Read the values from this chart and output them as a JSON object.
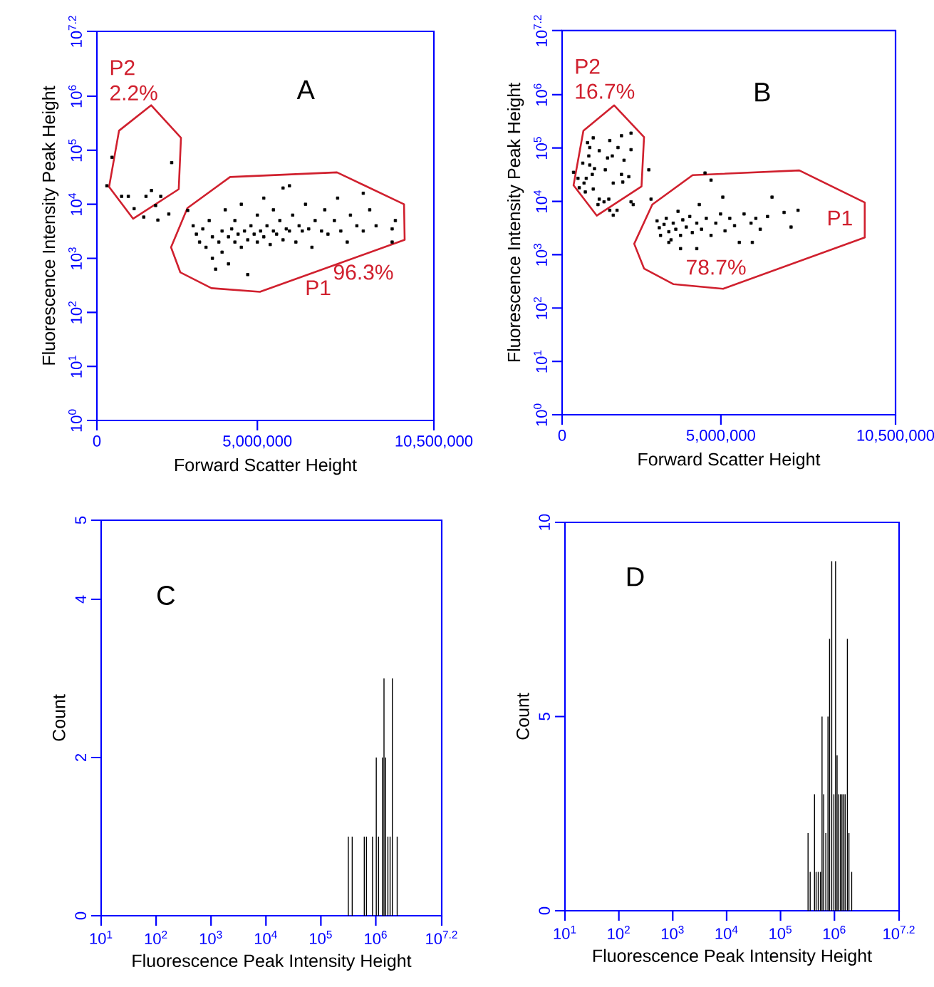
{
  "chart_data": [
    {
      "type": "scatter",
      "xlabel": "Forward Scatter Height",
      "ylabel": "Fluorescence Intensity Peak Height",
      "log": "y",
      "marker": "square",
      "xlim": [
        0,
        10500000
      ],
      "xticks": [
        0,
        {
          "value": 5000000,
          "label": "5,000,000"
        },
        {
          "value": 10500000,
          "label": "10,500,000"
        }
      ],
      "ylim": [
        1,
        15848932
      ],
      "yticks": [
        {
          "value": 1,
          "label": "10$^{0}$"
        },
        {
          "value": 10,
          "label": "10$^{1}$"
        },
        {
          "value": 100,
          "label": "10$^{2}$"
        },
        {
          "value": 1000,
          "label": "10$^{3}$"
        },
        {
          "value": 10000,
          "label": "10$^{4}$"
        },
        {
          "value": 100000,
          "label": "10$^{5}$"
        },
        {
          "value": 1000000,
          "label": "10$^{6}$"
        },
        {
          "value": 15848932,
          "label": "10$^{7.2}$"
        }
      ],
      "series": [
        {
          "type": "scatter",
          "color": "#000000",
          "x": [
            3000000,
            3100000,
            3200000,
            3300000,
            3400000,
            3500000,
            3600000,
            3600000,
            3700000,
            3800000,
            3900000,
            3900000,
            4000000,
            4100000,
            4100000,
            4200000,
            4300000,
            4300000,
            4400000,
            4500000,
            4500000,
            4600000,
            4700000,
            4700000,
            4800000,
            4900000,
            5000000,
            5000000,
            5100000,
            5200000,
            5200000,
            5300000,
            5400000,
            5500000,
            5500000,
            5600000,
            5700000,
            5800000,
            5800000,
            5900000,
            6000000,
            6000000,
            6100000,
            6200000,
            6300000,
            6400000,
            6500000,
            6600000,
            6700000,
            6800000,
            7000000,
            7100000,
            7200000,
            7400000,
            7500000,
            7600000,
            7800000,
            7900000,
            8100000,
            8300000,
            8300000,
            8500000,
            8700000,
            9200000,
            9300000,
            9200000,
            470000,
            2330000,
            1700000,
            770000,
            980000,
            1530000,
            1990000,
            1160000,
            1830000,
            1460000,
            1900000,
            2240000,
            2830000,
            310000
          ],
          "values": [
            4000,
            2800,
            2000,
            3500,
            1600,
            5000,
            1000,
            2500,
            630,
            2000,
            3200,
            1300,
            7900,
            2500,
            790,
            3500,
            2000,
            5000,
            2800,
            1600,
            10000,
            3200,
            2200,
            500,
            4000,
            2800,
            2000,
            6300,
            3200,
            2500,
            13000,
            4000,
            1800,
            3200,
            7900,
            2800,
            5000,
            2200,
            20000,
            3500,
            3200,
            22000,
            6300,
            2000,
            4000,
            3200,
            10000,
            3500,
            1600,
            5000,
            3200,
            7900,
            2800,
            5000,
            13000,
            3200,
            2000,
            6300,
            4000,
            16000,
            3200,
            7900,
            4000,
            3500,
            5000,
            2000,
            74000,
            59000,
            18000,
            14000,
            14000,
            14000,
            14000,
            8300,
            9500,
            5800,
            5100,
            6600,
            7700,
            22000
          ]
        }
      ],
      "annotations": [
        "A",
        "P2",
        "2.2%",
        "P1",
        "96.3%"
      ]
    },
    {
      "type": "scatter",
      "xlabel": "Forward Scatter Height",
      "ylabel": "Fluorescence Intensity Peak Height",
      "log": "y",
      "marker": "square",
      "xlim": [
        0,
        10500000
      ],
      "xticks": [
        0,
        {
          "value": 5000000,
          "label": "5,000,000"
        },
        {
          "value": 10500000,
          "label": "10,500,000"
        }
      ],
      "ylim": [
        1,
        15848932
      ],
      "yticks": [
        {
          "value": 1,
          "label": "10$^{0}$"
        },
        {
          "value": 10,
          "label": "10$^{1}$"
        },
        {
          "value": 100,
          "label": "10$^{2}$"
        },
        {
          "value": 1000,
          "label": "10$^{3}$"
        },
        {
          "value": 10000,
          "label": "10$^{4}$"
        },
        {
          "value": 100000,
          "label": "10$^{5}$"
        },
        {
          "value": 1000000,
          "label": "10$^{6}$"
        },
        {
          "value": 15848932,
          "label": "10$^{7.2}$"
        }
      ],
      "series": [
        {
          "type": "scatter",
          "color": "#000000",
          "x": [
            980000,
            800000,
            1500000,
            1870000,
            2170000,
            870000,
            1170000,
            1760000,
            2170000,
            650000,
            840000,
            1430000,
            1580000,
            1950000,
            870000,
            1020000,
            1360000,
            360000,
            500000,
            690000,
            950000,
            760000,
            1610000,
            1870000,
            2100000,
            1910000,
            540000,
            730000,
            980000,
            1170000,
            1320000,
            1470000,
            1130000,
            1500000,
            1610000,
            1730000,
            2170000,
            2240000,
            2730000,
            2800000,
            2990000,
            3060000,
            3100000,
            3210000,
            3280000,
            3360000,
            3430000,
            3500000,
            3580000,
            3650000,
            3730000,
            3800000,
            3910000,
            4020000,
            4100000,
            4240000,
            4320000,
            4390000,
            4540000,
            4690000,
            4690000,
            4840000,
            4990000,
            5060000,
            5130000,
            5280000,
            5430000,
            5580000,
            5730000,
            5950000,
            5990000,
            6100000,
            6240000,
            6470000,
            6610000,
            6990000,
            7210000,
            7430000,
            3360000,
            3730000,
            4240000,
            4500000
          ],
          "values": [
            155000,
            126000,
            138000,
            170000,
            190000,
            102000,
            89000,
            102000,
            93000,
            52000,
            71000,
            65000,
            71000,
            59000,
            48000,
            41000,
            39000,
            35000,
            27000,
            22000,
            32000,
            27000,
            22000,
            32000,
            29000,
            23000,
            18000,
            15000,
            17000,
            11000,
            9800,
            11000,
            8700,
            6800,
            5500,
            6800,
            9800,
            8700,
            39000,
            11000,
            4300,
            3200,
            2300,
            3700,
            4800,
            2700,
            1900,
            3900,
            3000,
            6500,
            2300,
            4500,
            3300,
            5200,
            2600,
            3900,
            8700,
            3000,
            4800,
            25000,
            2300,
            3900,
            5800,
            12000,
            2800,
            4800,
            3500,
            1700,
            5800,
            3900,
            1700,
            4800,
            3000,
            5200,
            12000,
            6200,
            3300,
            6800,
            1700,
            1300,
            1300,
            34000
          ]
        }
      ],
      "annotations": [
        "B",
        "P2",
        "16.7%",
        "P1",
        "78.7%"
      ]
    },
    {
      "type": "bar",
      "xlabel": "Fluorescence Peak Intensity Height",
      "ylabel": "Count",
      "log": "x",
      "xlim": [
        10,
        15848932
      ],
      "xticks": [
        {
          "value": 10,
          "label": "10$^{1}$"
        },
        {
          "value": 100,
          "label": "10$^{2}$"
        },
        {
          "value": 1000,
          "label": "10$^{3}$"
        },
        {
          "value": 10000,
          "label": "10$^{4}$"
        },
        {
          "value": 100000,
          "label": "10$^{5}$"
        },
        {
          "value": 1000000,
          "label": "10$^{6}$"
        },
        {
          "value": 15848932,
          "label": "10$^{7.2}$"
        }
      ],
      "ylim": [
        0,
        5
      ],
      "yticks": [
        0,
        2,
        4,
        5
      ],
      "series": [
        {
          "color": "#000000",
          "x": [
            316000,
            372000,
            617000,
            676000,
            871000,
            1020000,
            1120000,
            1320000,
            1410000,
            1510000,
            1660000,
            1820000,
            2000000,
            2450000
          ],
          "values": [
            1,
            1,
            1,
            1,
            1,
            2,
            1,
            2,
            3,
            2,
            1,
            1,
            3,
            1
          ]
        }
      ],
      "annotations": [
        "C"
      ]
    },
    {
      "type": "bar",
      "xlabel": "Fluorescence Peak Intensity Height",
      "ylabel": "Count",
      "log": "x",
      "xlim": [
        10,
        15848932
      ],
      "xticks": [
        {
          "value": 10,
          "label": "10$^{1}$"
        },
        {
          "value": 100,
          "label": "10$^{2}$"
        },
        {
          "value": 1000,
          "label": "10$^{3}$"
        },
        {
          "value": 10000,
          "label": "10$^{4}$"
        },
        {
          "value": 100000,
          "label": "10$^{5}$"
        },
        {
          "value": 1000000,
          "label": "10$^{6}$"
        },
        {
          "value": 15848932,
          "label": "10$^{7.2}$"
        }
      ],
      "ylim": [
        0,
        10
      ],
      "yticks": [
        0,
        5,
        10
      ],
      "series": [
        {
          "color": "#000000",
          "x": [
            324000,
            355000,
            427000,
            457000,
            501000,
            550000,
            589000,
            631000,
            692000,
            759000,
            813000,
            891000,
            977000,
            1050000,
            1120000,
            1200000,
            1290000,
            1380000,
            1480000,
            1580000,
            1740000,
            1860000,
            2090000
          ],
          "values": [
            2,
            1,
            3,
            1,
            1,
            1,
            5,
            3,
            2,
            5,
            7,
            9,
            3,
            9,
            4,
            3,
            3,
            3,
            3,
            3,
            7,
            2,
            1
          ]
        }
      ],
      "annotations": [
        "D"
      ]
    }
  ]
}
